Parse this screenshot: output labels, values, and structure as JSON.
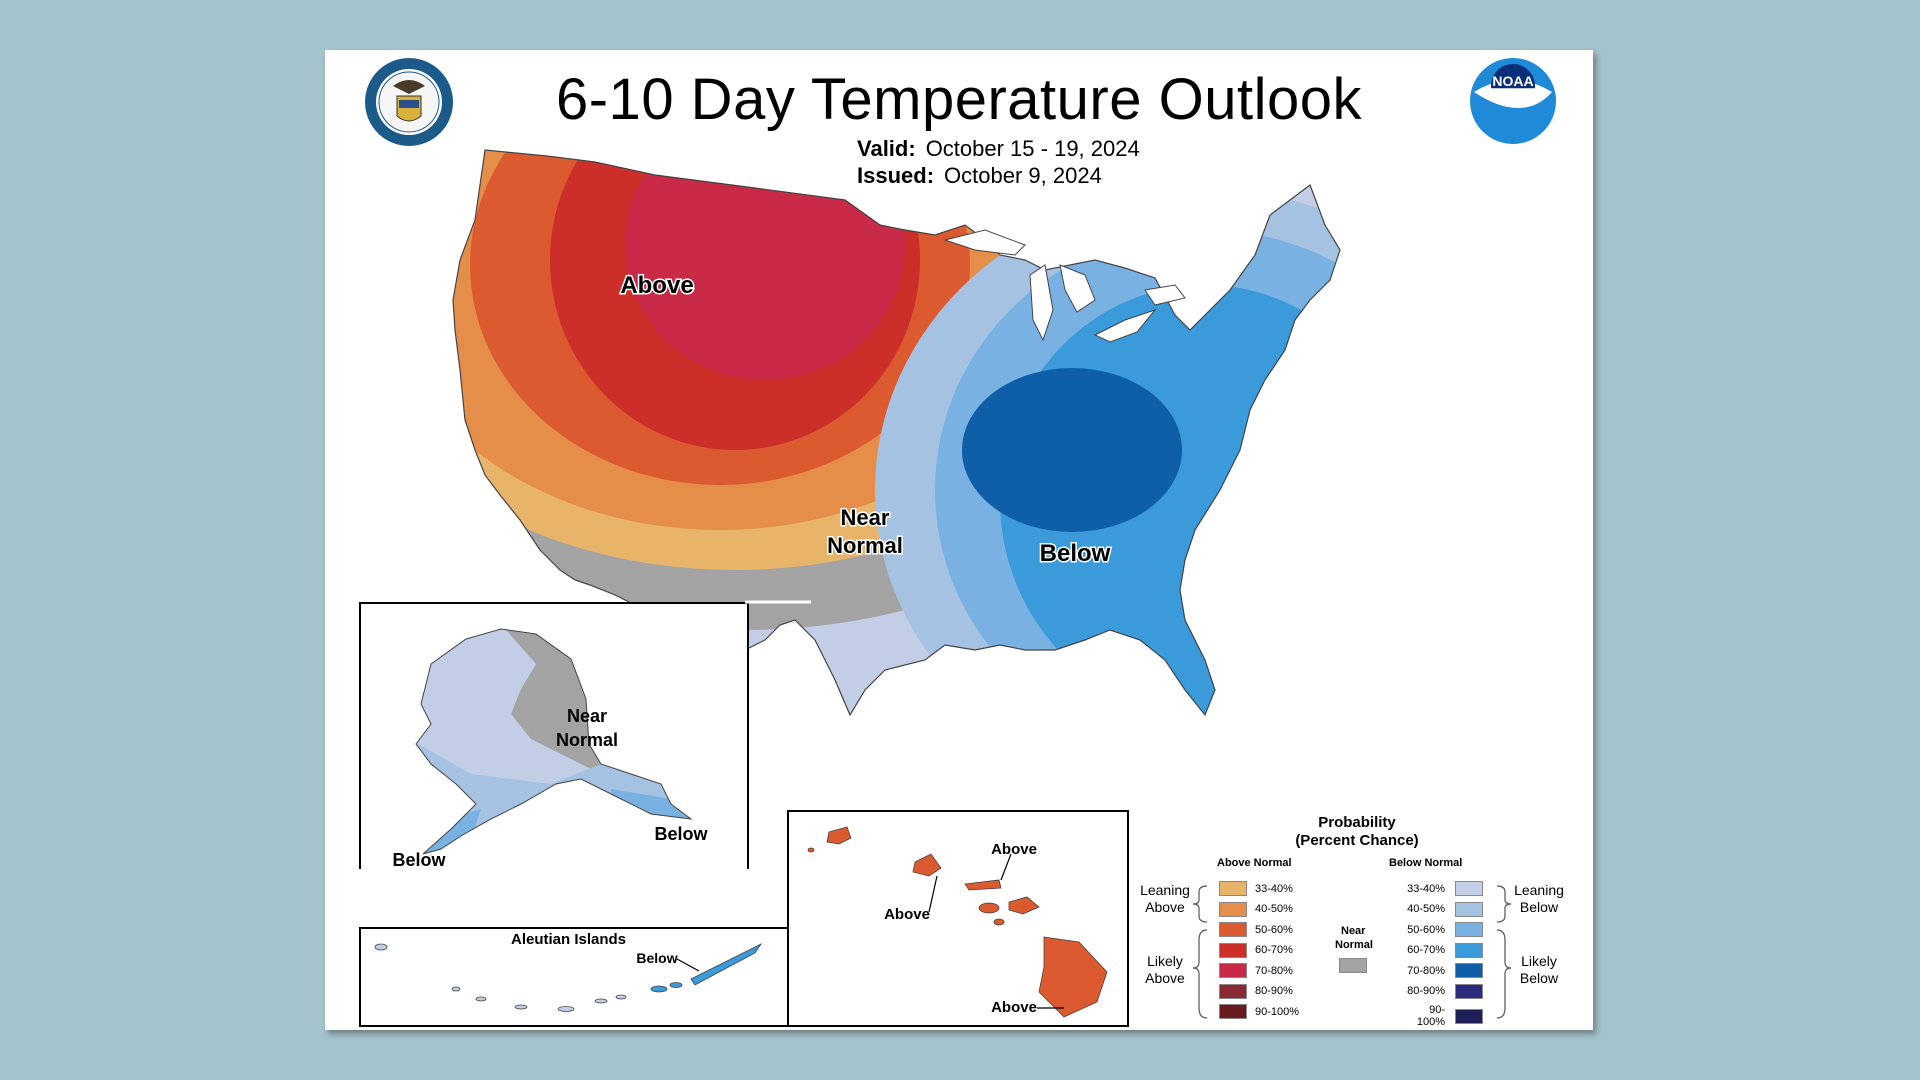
{
  "title": "6-10 Day Temperature Outlook",
  "valid_label": "Valid:",
  "valid_value": "October 15 - 19, 2024",
  "issued_label": "Issued:",
  "issued_value": "October 9, 2024",
  "seal_text": "DEPARTMENT OF COMMERCE · UNITED STATES OF AMERICA",
  "noaa_logo": "NOAA",
  "map_labels": {
    "above": "Above",
    "near": "Near",
    "normal": "Normal",
    "below": "Below"
  },
  "alaska_labels": {
    "near": "Near",
    "normal": "Normal",
    "below_east": "Below",
    "below_west": "Below"
  },
  "aleutian": {
    "title": "Aleutian Islands",
    "below": "Below"
  },
  "hawaii_labels": {
    "above1": "Above",
    "above2": "Above",
    "above3": "Above"
  },
  "legend": {
    "title_line1": "Probability",
    "title_line2": "(Percent Chance)",
    "above_header": "Above Normal",
    "below_header": "Below Normal",
    "near_label_1": "Near",
    "near_label_2": "Normal",
    "leaning_above_1": "Leaning",
    "leaning_above_2": "Above",
    "likely_above_1": "Likely",
    "likely_above_2": "Above",
    "leaning_below_1": "Leaning",
    "leaning_below_2": "Below",
    "likely_below_1": "Likely",
    "likely_below_2": "Below",
    "above_rows": [
      {
        "range": "33-40%",
        "color": "#e8b46a"
      },
      {
        "range": "40-50%",
        "color": "#e58e4a"
      },
      {
        "range": "50-60%",
        "color": "#dc5a30"
      },
      {
        "range": "60-70%",
        "color": "#cc2e2a"
      },
      {
        "range": "70-80%",
        "color": "#c92a47"
      },
      {
        "range": "80-90%",
        "color": "#8a2a32"
      },
      {
        "range": "90-100%",
        "color": "#6a1a1e"
      }
    ],
    "below_rows": [
      {
        "range": "33-40%",
        "color": "#c2cde6"
      },
      {
        "range": "40-50%",
        "color": "#a5c2e3"
      },
      {
        "range": "50-60%",
        "color": "#79b1e2"
      },
      {
        "range": "60-70%",
        "color": "#3a9ada"
      },
      {
        "range": "70-80%",
        "color": "#0e5fa8"
      },
      {
        "range": "80-90%",
        "color": "#2a2a7e"
      },
      {
        "range": "90-100%",
        "color": "#1f1f55"
      }
    ],
    "near_color": "#a3a3a3"
  }
}
